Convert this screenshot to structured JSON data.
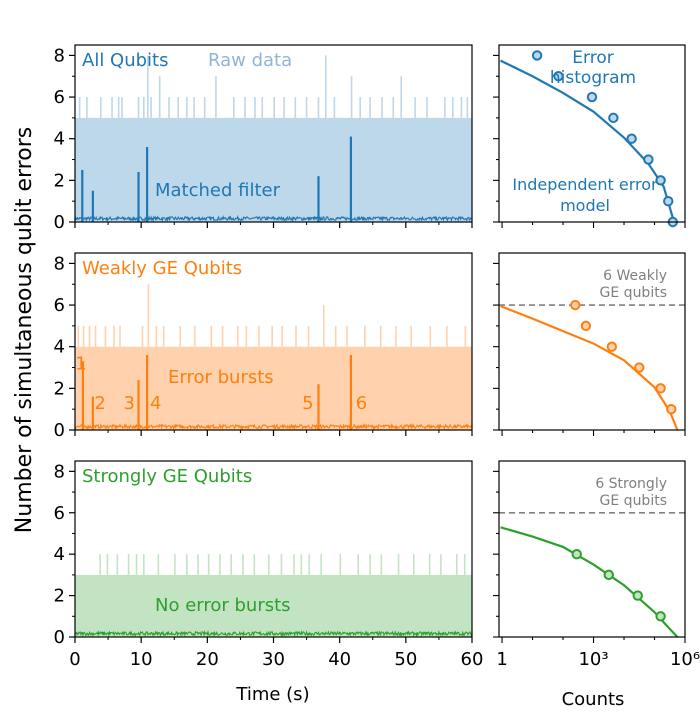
{
  "figure": {
    "ylabel": "Number of simultaneous qubit errors",
    "time_xlabel": "Time (s)",
    "counts_xlabel": "Counts"
  },
  "colors": {
    "blue": "#1f77b4",
    "blue_light": "#bdd7eb",
    "orange": "#ff7f0e",
    "orange_light": "#ffd2ad",
    "green": "#2ca02c",
    "green_light": "#c2e4c2",
    "gray": "#808080"
  },
  "chart_data": [
    {
      "type": "area",
      "panel": "All Qubits",
      "title": "All Qubits",
      "annotations": [
        "Raw data",
        "Matched filter"
      ],
      "xlabel": "",
      "xlim": [
        0,
        60
      ],
      "ylim": [
        0,
        8.5
      ],
      "yticks": [
        0,
        2,
        4,
        6,
        8
      ],
      "raw_baseline": 5,
      "raw_spikes": [
        {
          "t": 0.7,
          "v": 6
        },
        {
          "t": 1.8,
          "v": 6
        },
        {
          "t": 3.9,
          "v": 6
        },
        {
          "t": 5.6,
          "v": 6
        },
        {
          "t": 6.6,
          "v": 6
        },
        {
          "t": 7.1,
          "v": 6
        },
        {
          "t": 9.6,
          "v": 6
        },
        {
          "t": 10.4,
          "v": 6
        },
        {
          "t": 11.0,
          "v": 8
        },
        {
          "t": 11.5,
          "v": 6
        },
        {
          "t": 12.8,
          "v": 7
        },
        {
          "t": 14.2,
          "v": 6
        },
        {
          "t": 15.6,
          "v": 6
        },
        {
          "t": 16.9,
          "v": 6
        },
        {
          "t": 18.0,
          "v": 6
        },
        {
          "t": 19.6,
          "v": 6
        },
        {
          "t": 21.3,
          "v": 7
        },
        {
          "t": 24.0,
          "v": 6
        },
        {
          "t": 25.7,
          "v": 6
        },
        {
          "t": 27.2,
          "v": 6
        },
        {
          "t": 28.3,
          "v": 6
        },
        {
          "t": 30.1,
          "v": 6
        },
        {
          "t": 31.6,
          "v": 6
        },
        {
          "t": 33.3,
          "v": 6
        },
        {
          "t": 35.0,
          "v": 6
        },
        {
          "t": 36.8,
          "v": 6
        },
        {
          "t": 37.9,
          "v": 8
        },
        {
          "t": 39.2,
          "v": 6
        },
        {
          "t": 41.8,
          "v": 7
        },
        {
          "t": 43.1,
          "v": 6
        },
        {
          "t": 44.6,
          "v": 6
        },
        {
          "t": 46.4,
          "v": 6
        },
        {
          "t": 48.1,
          "v": 6
        },
        {
          "t": 49.3,
          "v": 7
        },
        {
          "t": 51.4,
          "v": 6
        },
        {
          "t": 53.2,
          "v": 6
        },
        {
          "t": 55.9,
          "v": 6
        },
        {
          "t": 57.1,
          "v": 6
        },
        {
          "t": 58.4,
          "v": 6
        },
        {
          "t": 59.3,
          "v": 6
        }
      ],
      "matched_filter_bursts": [
        {
          "t": 1.1,
          "v": 2.5
        },
        {
          "t": 2.7,
          "v": 1.5
        },
        {
          "t": 9.6,
          "v": 2.4
        },
        {
          "t": 10.9,
          "v": 3.6
        },
        {
          "t": 36.8,
          "v": 2.2
        },
        {
          "t": 41.7,
          "v": 4.1
        }
      ]
    },
    {
      "type": "scatter",
      "panel": "All Qubits histogram",
      "annotations": [
        "Error histogram",
        "Independent error model"
      ],
      "xscale": "log",
      "xlim_log10": [
        -0.1,
        6
      ],
      "ylim": [
        0,
        8.5
      ],
      "points": [
        {
          "count_log10": 1.15,
          "errors": 8
        },
        {
          "count_log10": 1.85,
          "errors": 7
        },
        {
          "count_log10": 2.95,
          "errors": 6
        },
        {
          "count_log10": 3.65,
          "errors": 5
        },
        {
          "count_log10": 4.25,
          "errors": 4
        },
        {
          "count_log10": 4.8,
          "errors": 3
        },
        {
          "count_log10": 5.2,
          "errors": 2
        },
        {
          "count_log10": 5.45,
          "errors": 1
        },
        {
          "count_log10": 5.6,
          "errors": 0
        }
      ],
      "model_curve": [
        {
          "count_log10": -0.05,
          "errors": 7.75
        },
        {
          "count_log10": 1.0,
          "errors": 7.0
        },
        {
          "count_log10": 2.0,
          "errors": 6.2
        },
        {
          "count_log10": 3.0,
          "errors": 5.3
        },
        {
          "count_log10": 4.0,
          "errors": 4.05
        },
        {
          "count_log10": 4.8,
          "errors": 2.8
        },
        {
          "count_log10": 5.3,
          "errors": 1.7
        },
        {
          "count_log10": 5.6,
          "errors": 0.2
        }
      ]
    },
    {
      "type": "area",
      "panel": "Weakly GE Qubits",
      "title": "Weakly GE Qubits",
      "annotations": [
        "Error bursts"
      ],
      "burst_labels": [
        {
          "label": "1",
          "t": 0.9,
          "v": 2.9
        },
        {
          "label": "2",
          "t": 3.8,
          "v": 1.0
        },
        {
          "label": "3",
          "t": 8.2,
          "v": 1.0
        },
        {
          "label": "4",
          "t": 12.2,
          "v": 1.0
        },
        {
          "label": "5",
          "t": 35.2,
          "v": 1.0
        },
        {
          "label": "6",
          "t": 43.3,
          "v": 1.0
        }
      ],
      "xlabel": "",
      "xlim": [
        0,
        60
      ],
      "ylim": [
        0,
        8.5
      ],
      "yticks": [
        0,
        2,
        4,
        6,
        8
      ],
      "raw_baseline": 4,
      "raw_spikes": [
        {
          "t": 0.5,
          "v": 5
        },
        {
          "t": 1.3,
          "v": 5
        },
        {
          "t": 2.2,
          "v": 5
        },
        {
          "t": 3.1,
          "v": 5
        },
        {
          "t": 4.6,
          "v": 5
        },
        {
          "t": 5.9,
          "v": 5
        },
        {
          "t": 6.8,
          "v": 5
        },
        {
          "t": 10.2,
          "v": 5
        },
        {
          "t": 11.1,
          "v": 7
        },
        {
          "t": 12.3,
          "v": 5
        },
        {
          "t": 13.4,
          "v": 5
        },
        {
          "t": 15.9,
          "v": 5
        },
        {
          "t": 18.1,
          "v": 5
        },
        {
          "t": 20.6,
          "v": 5
        },
        {
          "t": 22.3,
          "v": 5
        },
        {
          "t": 24.6,
          "v": 5
        },
        {
          "t": 25.9,
          "v": 5
        },
        {
          "t": 27.8,
          "v": 5
        },
        {
          "t": 29.8,
          "v": 5
        },
        {
          "t": 31.3,
          "v": 5
        },
        {
          "t": 33.4,
          "v": 5
        },
        {
          "t": 35.3,
          "v": 5
        },
        {
          "t": 37.6,
          "v": 6
        },
        {
          "t": 39.4,
          "v": 5
        },
        {
          "t": 41.1,
          "v": 5
        },
        {
          "t": 43.8,
          "v": 5
        },
        {
          "t": 46.2,
          "v": 5
        },
        {
          "t": 48.5,
          "v": 5
        },
        {
          "t": 50.8,
          "v": 5
        },
        {
          "t": 53.7,
          "v": 5
        },
        {
          "t": 56.2,
          "v": 5
        },
        {
          "t": 59.0,
          "v": 5
        }
      ],
      "matched_filter_bursts": [
        {
          "t": 1.2,
          "v": 3.3
        },
        {
          "t": 2.7,
          "v": 1.6
        },
        {
          "t": 9.6,
          "v": 2.4
        },
        {
          "t": 10.9,
          "v": 3.6
        },
        {
          "t": 36.8,
          "v": 2.2
        },
        {
          "t": 41.7,
          "v": 3.6
        }
      ]
    },
    {
      "type": "scatter",
      "panel": "Weakly GE Qubits histogram",
      "annotations": [
        "6 Weakly GE qubits"
      ],
      "reference_line": 6,
      "xscale": "log",
      "xlim_log10": [
        -0.1,
        6
      ],
      "ylim": [
        0,
        8.5
      ],
      "points": [
        {
          "count_log10": 2.4,
          "errors": 6
        },
        {
          "count_log10": 2.75,
          "errors": 5
        },
        {
          "count_log10": 3.6,
          "errors": 4
        },
        {
          "count_log10": 4.5,
          "errors": 3
        },
        {
          "count_log10": 5.2,
          "errors": 2
        },
        {
          "count_log10": 5.55,
          "errors": 1
        }
      ],
      "model_curve": [
        {
          "count_log10": -0.05,
          "errors": 5.95
        },
        {
          "count_log10": 1.0,
          "errors": 5.35
        },
        {
          "count_log10": 2.0,
          "errors": 4.75
        },
        {
          "count_log10": 3.0,
          "errors": 4.15
        },
        {
          "count_log10": 4.0,
          "errors": 3.35
        },
        {
          "count_log10": 5.0,
          "errors": 2.05
        },
        {
          "count_log10": 5.5,
          "errors": 0.9
        },
        {
          "count_log10": 5.75,
          "errors": 0.0
        }
      ]
    },
    {
      "type": "area",
      "panel": "Strongly GE Qubits",
      "title": "Strongly GE Qubits",
      "annotations": [
        "No error bursts"
      ],
      "xlabel": "Time (s)",
      "xlim": [
        0,
        60
      ],
      "xticks": [
        0,
        10,
        20,
        30,
        40,
        50,
        60
      ],
      "ylim": [
        0,
        8.5
      ],
      "yticks": [
        0,
        2,
        4,
        6,
        8
      ],
      "raw_baseline": 3,
      "raw_spikes": [
        {
          "t": 3.8,
          "v": 4
        },
        {
          "t": 4.9,
          "v": 4
        },
        {
          "t": 6.4,
          "v": 4
        },
        {
          "t": 8.1,
          "v": 4
        },
        {
          "t": 9.3,
          "v": 4
        },
        {
          "t": 10.4,
          "v": 4
        },
        {
          "t": 12.6,
          "v": 4
        },
        {
          "t": 15.1,
          "v": 4
        },
        {
          "t": 16.9,
          "v": 4
        },
        {
          "t": 18.6,
          "v": 4
        },
        {
          "t": 20.2,
          "v": 4
        },
        {
          "t": 21.9,
          "v": 4
        },
        {
          "t": 23.6,
          "v": 4
        },
        {
          "t": 25.4,
          "v": 4
        },
        {
          "t": 27.1,
          "v": 4
        },
        {
          "t": 29.3,
          "v": 4
        },
        {
          "t": 31.2,
          "v": 4
        },
        {
          "t": 33.1,
          "v": 4
        },
        {
          "t": 34.2,
          "v": 4
        },
        {
          "t": 35.4,
          "v": 4
        },
        {
          "t": 37.2,
          "v": 4
        },
        {
          "t": 40.1,
          "v": 4
        },
        {
          "t": 42.8,
          "v": 4
        },
        {
          "t": 44.6,
          "v": 4
        },
        {
          "t": 46.3,
          "v": 4
        },
        {
          "t": 48.9,
          "v": 4
        },
        {
          "t": 51.2,
          "v": 4
        },
        {
          "t": 53.6,
          "v": 4
        },
        {
          "t": 55.3,
          "v": 4
        },
        {
          "t": 57.7,
          "v": 4
        },
        {
          "t": 58.9,
          "v": 4
        }
      ],
      "matched_filter_bursts": []
    },
    {
      "type": "scatter",
      "panel": "Strongly GE Qubits histogram",
      "annotations": [
        "6 Strongly GE qubits"
      ],
      "reference_line": 6,
      "xscale": "log",
      "xlim_log10": [
        -0.1,
        6
      ],
      "ylim": [
        0,
        8.5
      ],
      "xlabel": "Counts",
      "xtick_labels": [
        "1",
        "10³",
        "10⁶"
      ],
      "points": [
        {
          "count_log10": 2.45,
          "errors": 4
        },
        {
          "count_log10": 3.5,
          "errors": 3
        },
        {
          "count_log10": 4.45,
          "errors": 2
        },
        {
          "count_log10": 5.2,
          "errors": 1
        }
      ],
      "model_curve": [
        {
          "count_log10": -0.05,
          "errors": 5.3
        },
        {
          "count_log10": 1.0,
          "errors": 4.85
        },
        {
          "count_log10": 2.0,
          "errors": 4.35
        },
        {
          "count_log10": 3.0,
          "errors": 3.5
        },
        {
          "count_log10": 4.0,
          "errors": 2.5
        },
        {
          "count_log10": 5.0,
          "errors": 1.2
        },
        {
          "count_log10": 5.4,
          "errors": 0.55
        },
        {
          "count_log10": 5.75,
          "errors": 0.0
        }
      ]
    }
  ]
}
